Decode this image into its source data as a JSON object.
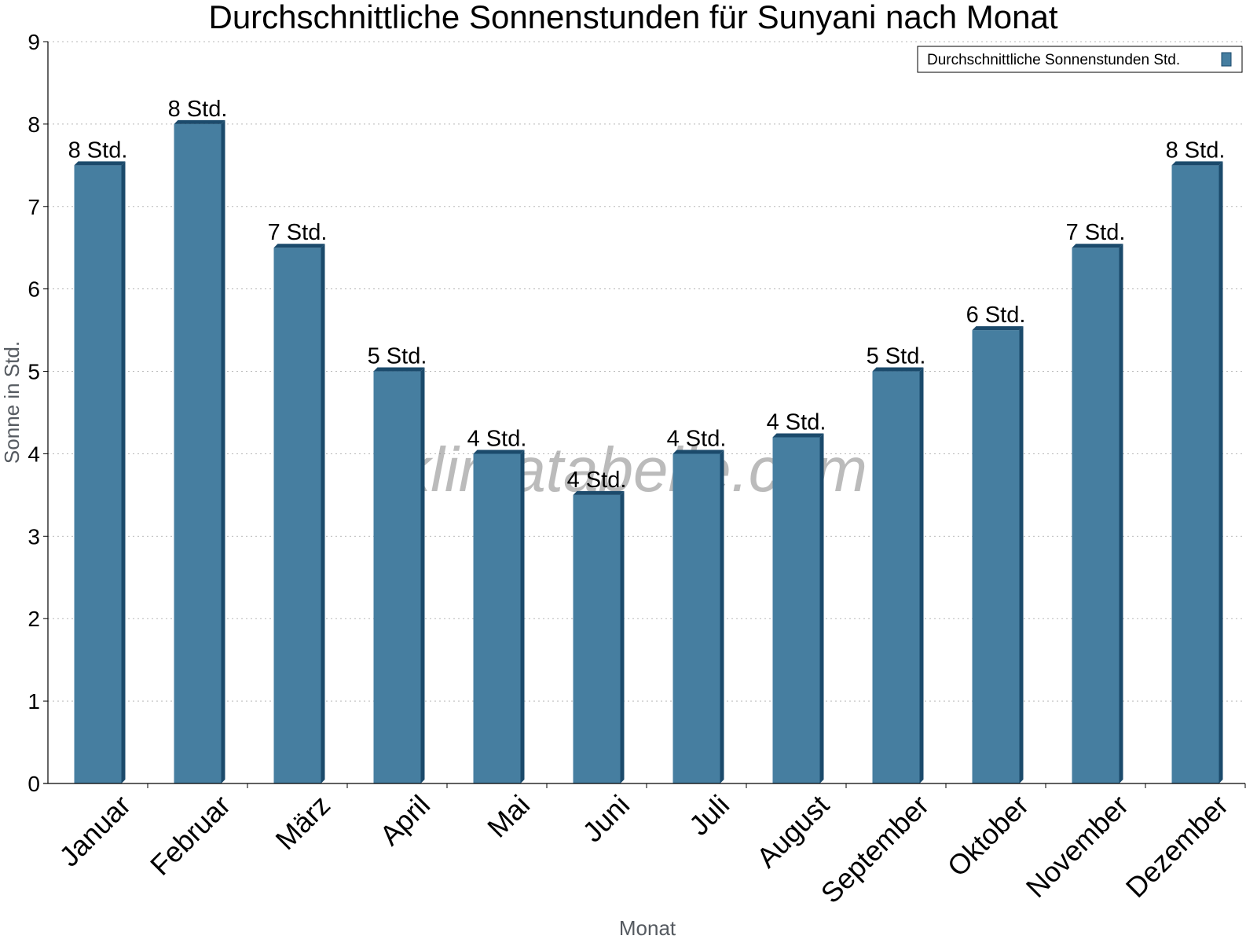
{
  "chart_data": {
    "type": "bar",
    "title": "Durchschnittliche Sonnenstunden für Sunyani nach Monat",
    "xlabel": "Monat",
    "ylabel": "Sonne in Std.",
    "ylim": [
      0,
      9
    ],
    "yticks": [
      0,
      1,
      2,
      3,
      4,
      5,
      6,
      7,
      8,
      9
    ],
    "grid": true,
    "legend_position": "top-right",
    "categories": [
      "Januar",
      "Februar",
      "März",
      "April",
      "Mai",
      "Juni",
      "Juli",
      "August",
      "September",
      "Oktober",
      "November",
      "Dezember"
    ],
    "series": [
      {
        "name": "Durchschnittliche Sonnenstunden Std.",
        "color": "#467ea0",
        "values": [
          7.5,
          8.0,
          6.5,
          5.0,
          4.0,
          3.5,
          4.0,
          4.2,
          5.0,
          5.5,
          6.5,
          7.5
        ],
        "labels": [
          "8 Std.",
          "8 Std.",
          "7 Std.",
          "5 Std.",
          "4 Std.",
          "4 Std.",
          "4 Std.",
          "4 Std.",
          "5 Std.",
          "6 Std.",
          "7 Std.",
          "8 Std."
        ]
      }
    ]
  },
  "watermark": "klimatabelle.com"
}
